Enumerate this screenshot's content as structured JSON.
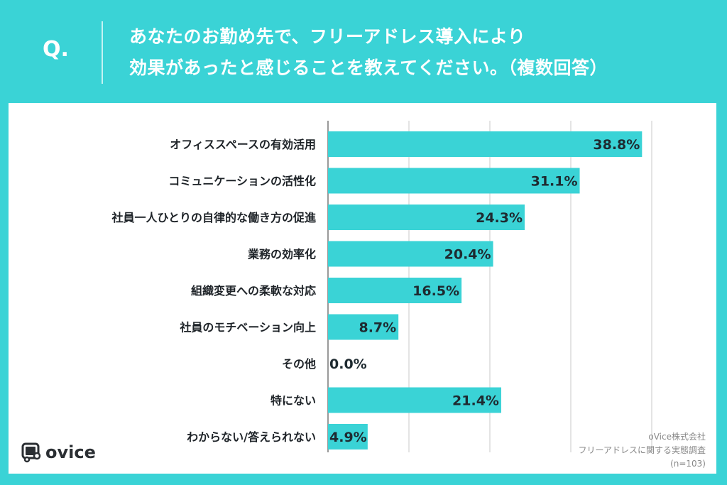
{
  "header": {
    "q_mark": "Q.",
    "title_line1": "あなたのお勤め先で、フリーアドレス導入により",
    "title_line2": "効果があったと感じることを教えてください。（複数回答）"
  },
  "colors": {
    "brand": "#3ad3d6",
    "bar": "#3ad3d6",
    "text": "#1e2328"
  },
  "logo": {
    "text": "ovice",
    "icon": "ovice-logo-icon"
  },
  "source": {
    "line1": "oVice株式会社",
    "line2": "フリーアドレスに関する実態調査",
    "line3": "(n=103)"
  },
  "chart_data": {
    "type": "bar",
    "orientation": "horizontal",
    "title": "あなたのお勤め先で、フリーアドレス導入により効果があったと感じることを教えてください。（複数回答）",
    "xlabel": "",
    "ylabel": "",
    "xlim": [
      0,
      40
    ],
    "grid": true,
    "gridlines": [
      0,
      10,
      20,
      30,
      40
    ],
    "unit": "%",
    "categories": [
      "オフィススペースの有効活用",
      "コミュニケーションの活性化",
      "社員一人ひとりの自律的な働き方の促進",
      "業務の効率化",
      "組織変更への柔軟な対応",
      "社員のモチベーション向上",
      "その他",
      "特にない",
      "わからない/答えられない"
    ],
    "values": [
      38.8,
      31.1,
      24.3,
      20.4,
      16.5,
      8.7,
      0.0,
      21.4,
      4.9
    ],
    "value_labels": [
      "38.8%",
      "31.1%",
      "24.3%",
      "20.4%",
      "16.5%",
      "8.7%",
      "0.0%",
      "21.4%",
      "4.9%"
    ]
  }
}
